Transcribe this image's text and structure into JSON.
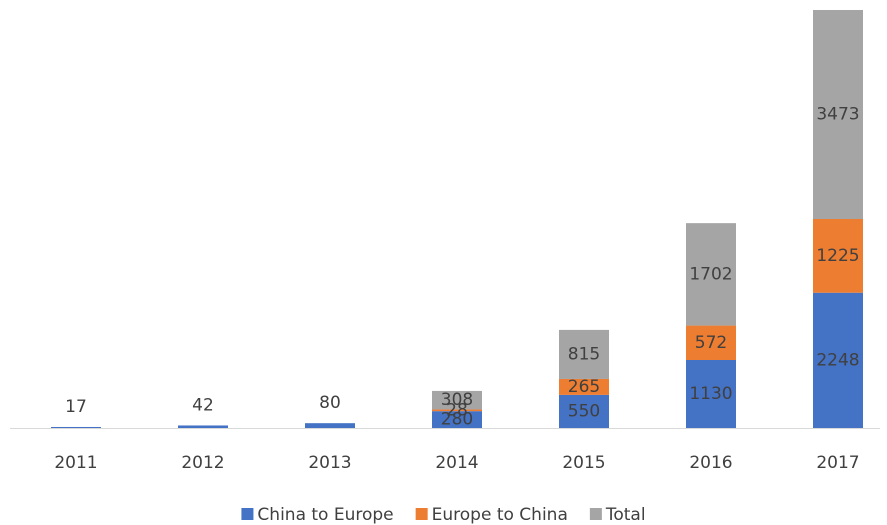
{
  "chart_data": {
    "type": "stacked_bar",
    "categories": [
      "2011",
      "2012",
      "2013",
      "2014",
      "2015",
      "2016",
      "2017"
    ],
    "series": [
      {
        "name": "China to Europe",
        "color": "#4472c4",
        "values": [
          17,
          42,
          80,
          280,
          550,
          1130,
          2248
        ]
      },
      {
        "name": "Europe to China",
        "color": "#ed7d31",
        "values": [
          null,
          null,
          null,
          28,
          265,
          572,
          1225
        ]
      },
      {
        "name": "Total",
        "color": "#a5a5a5",
        "values": [
          null,
          null,
          null,
          308,
          815,
          1702,
          3473
        ]
      }
    ],
    "legend": "bottom"
  }
}
